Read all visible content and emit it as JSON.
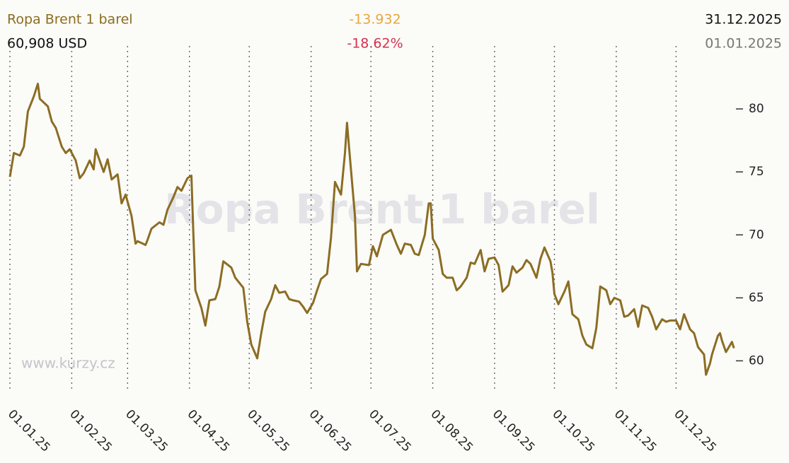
{
  "chart_data": {
    "type": "line",
    "title": "Ropa Brent 1 barel",
    "price": "60,908 USD",
    "change": "-13.932",
    "change_pct": "-18.62%",
    "date_end": "31.12.2025",
    "date_start": "01.01.2025",
    "watermark": "Ropa Brent 1 barel",
    "source": "www.kurzy.cz",
    "color": "#8b6d23",
    "grid": true,
    "xlim": [
      "01.01.25",
      "31.12.25"
    ],
    "xticks": [
      "01.01.25",
      "01.02.25",
      "01.03.25",
      "01.04.25",
      "01.05.25",
      "01.06.25",
      "01.07.25",
      "01.08.25",
      "01.09.25",
      "01.10.25",
      "01.11.25",
      "01.12.25"
    ],
    "ylim": [
      57.5,
      85
    ],
    "yticks": [
      60,
      65,
      70,
      75,
      80
    ],
    "x": [
      "01.01.25",
      "03.01.25",
      "06.01.25",
      "08.01.25",
      "10.01.25",
      "13.01.25",
      "15.01.25",
      "16.01.25",
      "20.01.25",
      "22.01.25",
      "24.01.25",
      "27.01.25",
      "29.01.25",
      "31.01.25",
      "03.02.25",
      "05.02.25",
      "07.02.25",
      "10.02.25",
      "12.02.25",
      "13.02.25",
      "17.02.25",
      "19.02.25",
      "21.02.25",
      "24.02.25",
      "26.02.25",
      "28.02.25",
      "03.03.25",
      "05.03.25",
      "06.03.25",
      "10.03.25",
      "11.03.25",
      "13.03.25",
      "17.03.25",
      "19.03.25",
      "21.03.25",
      "24.03.25",
      "26.03.25",
      "28.03.25",
      "31.03.25",
      "02.04.25",
      "03.04.25",
      "04.04.25",
      "07.04.25",
      "09.04.25",
      "11.04.25",
      "14.04.25",
      "16.04.25",
      "18.04.25",
      "22.04.25",
      "24.04.25",
      "28.04.25",
      "30.04.25",
      "02.05.25",
      "05.05.25",
      "07.05.25",
      "09.05.25",
      "12.05.25",
      "14.05.25",
      "16.05.25",
      "19.05.25",
      "21.05.25",
      "23.05.25",
      "26.05.25",
      "28.05.25",
      "30.05.25",
      "02.06.25",
      "04.06.25",
      "06.06.25",
      "09.06.25",
      "11.06.25",
      "13.06.25",
      "16.06.25",
      "18.06.25",
      "19.06.25",
      "20.06.25",
      "23.06.25",
      "24.06.25",
      "26.06.25",
      "30.06.25",
      "02.07.25",
      "04.07.25",
      "07.07.25",
      "09.07.25",
      "11.07.25",
      "14.07.25",
      "16.07.25",
      "18.07.25",
      "21.07.25",
      "23.07.25",
      "25.07.25",
      "28.07.25",
      "30.07.25",
      "31.07.25",
      "01.08.25",
      "04.08.25",
      "06.08.25",
      "08.08.25",
      "11.08.25",
      "13.08.25",
      "15.08.25",
      "18.08.25",
      "20.08.25",
      "22.08.25",
      "25.08.25",
      "27.08.25",
      "29.08.25",
      "01.09.25",
      "03.09.25",
      "05.09.25",
      "08.09.25",
      "10.09.25",
      "12.09.25",
      "15.09.25",
      "17.09.25",
      "19.09.25",
      "22.09.25",
      "24.09.25",
      "26.09.25",
      "29.09.25",
      "30.09.25",
      "01.10.25",
      "03.10.25",
      "06.10.25",
      "08.10.25",
      "10.10.25",
      "13.10.25",
      "15.10.25",
      "17.10.25",
      "20.10.25",
      "22.10.25",
      "24.10.25",
      "27.10.25",
      "29.10.25",
      "31.10.25",
      "03.11.25",
      "05.11.25",
      "07.11.25",
      "10.11.25",
      "12.11.25",
      "14.11.25",
      "17.11.25",
      "19.11.25",
      "21.11.25",
      "24.11.25",
      "26.11.25",
      "28.11.25",
      "01.12.25",
      "03.12.25",
      "05.12.25",
      "08.12.25",
      "10.12.25",
      "12.12.25",
      "15.12.25",
      "16.12.25",
      "18.12.25",
      "19.12.25",
      "22.12.25",
      "23.12.25",
      "24.12.25",
      "26.12.25",
      "29.12.25",
      "30.12.25"
    ],
    "values": [
      74.6,
      76.5,
      76.3,
      77.0,
      79.8,
      81.0,
      82.0,
      80.8,
      80.2,
      79.0,
      78.5,
      77.0,
      76.5,
      76.8,
      75.9,
      74.5,
      74.9,
      75.9,
      75.2,
      76.8,
      75.0,
      76.0,
      74.4,
      74.8,
      72.5,
      73.2,
      71.5,
      69.3,
      69.5,
      69.2,
      69.6,
      70.5,
      71.0,
      70.8,
      72.0,
      73.0,
      73.8,
      73.5,
      74.5,
      74.7,
      70.0,
      65.6,
      64.2,
      62.8,
      64.8,
      64.9,
      65.9,
      67.9,
      67.4,
      66.6,
      65.8,
      63.1,
      61.3,
      60.2,
      62.2,
      63.9,
      64.9,
      66.0,
      65.4,
      65.5,
      64.9,
      64.8,
      64.7,
      64.3,
      63.8,
      64.6,
      65.6,
      66.5,
      66.9,
      69.8,
      74.2,
      73.2,
      76.5,
      78.9,
      77.0,
      71.5,
      67.1,
      67.7,
      67.6,
      69.1,
      68.3,
      70.0,
      70.2,
      70.4,
      69.2,
      68.5,
      69.3,
      69.2,
      68.5,
      68.4,
      70.0,
      72.5,
      72.5,
      69.7,
      68.8,
      66.9,
      66.6,
      66.6,
      65.6,
      65.9,
      66.6,
      67.8,
      67.7,
      68.8,
      67.1,
      68.1,
      68.2,
      67.6,
      65.5,
      66.0,
      67.5,
      67.0,
      67.4,
      68.0,
      67.7,
      66.6,
      68.1,
      69.0,
      67.9,
      67.0,
      65.3,
      64.5,
      65.5,
      66.3,
      63.7,
      63.3,
      62.0,
      61.3,
      61.0,
      62.6,
      65.9,
      65.6,
      64.5,
      65.0,
      64.8,
      63.5,
      63.6,
      64.1,
      62.7,
      64.4,
      64.2,
      63.5,
      62.5,
      63.3,
      63.1,
      63.2,
      63.2,
      62.5,
      63.7,
      62.5,
      62.2,
      61.1,
      60.5,
      58.9,
      59.8,
      60.5,
      62.0,
      62.2,
      61.6,
      60.7,
      61.5,
      61.0
    ]
  }
}
